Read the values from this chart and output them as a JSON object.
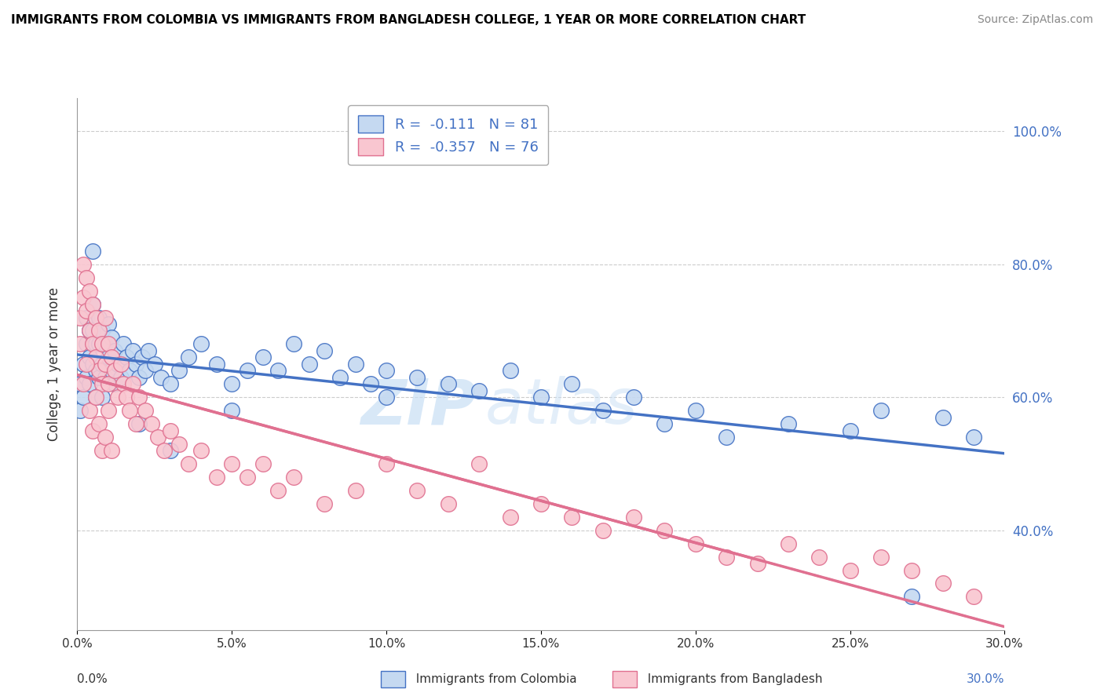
{
  "title": "IMMIGRANTS FROM COLOMBIA VS IMMIGRANTS FROM BANGLADESH COLLEGE, 1 YEAR OR MORE CORRELATION CHART",
  "source": "Source: ZipAtlas.com",
  "ylabel": "College, 1 year or more",
  "xlim": [
    0.0,
    0.3
  ],
  "ylim": [
    0.25,
    1.05
  ],
  "yticks": [
    0.4,
    0.6,
    0.8,
    1.0
  ],
  "ytick_labels": [
    "40.0%",
    "60.0%",
    "80.0%",
    "100.0%"
  ],
  "xticks": [
    0.0,
    0.05,
    0.1,
    0.15,
    0.2,
    0.25,
    0.3
  ],
  "xtick_labels": [
    "0.0%",
    "5.0%",
    "10.0%",
    "15.0%",
    "20.0%",
    "25.0%",
    "30.0%"
  ],
  "colombia_color": "#c5d9f1",
  "colombia_edge": "#4472c4",
  "bangladesh_color": "#f9c6d0",
  "bangladesh_edge": "#e07090",
  "trend_colombia_color": "#4472c4",
  "trend_bangladesh_color": "#e07090",
  "R_colombia": -0.111,
  "N_colombia": 81,
  "R_bangladesh": -0.357,
  "N_bangladesh": 76,
  "watermark_zip": "ZIP",
  "watermark_atlas": "atlas",
  "legend_label_colombia": "Immigrants from Colombia",
  "legend_label_bangladesh": "Immigrants from Bangladesh",
  "colombia_x": [
    0.001,
    0.001,
    0.002,
    0.002,
    0.003,
    0.003,
    0.003,
    0.004,
    0.004,
    0.004,
    0.005,
    0.005,
    0.005,
    0.006,
    0.006,
    0.006,
    0.007,
    0.007,
    0.007,
    0.008,
    0.008,
    0.008,
    0.009,
    0.009,
    0.01,
    0.01,
    0.011,
    0.011,
    0.012,
    0.012,
    0.013,
    0.014,
    0.015,
    0.016,
    0.017,
    0.018,
    0.019,
    0.02,
    0.021,
    0.022,
    0.023,
    0.025,
    0.027,
    0.03,
    0.033,
    0.036,
    0.04,
    0.045,
    0.05,
    0.055,
    0.06,
    0.065,
    0.07,
    0.075,
    0.08,
    0.085,
    0.09,
    0.095,
    0.1,
    0.11,
    0.12,
    0.13,
    0.14,
    0.15,
    0.16,
    0.17,
    0.18,
    0.19,
    0.2,
    0.21,
    0.23,
    0.25,
    0.26,
    0.27,
    0.28,
    0.29,
    0.1,
    0.05,
    0.03,
    0.02,
    0.005
  ],
  "colombia_y": [
    0.62,
    0.58,
    0.65,
    0.6,
    0.72,
    0.68,
    0.63,
    0.7,
    0.66,
    0.62,
    0.74,
    0.7,
    0.65,
    0.68,
    0.64,
    0.6,
    0.72,
    0.68,
    0.63,
    0.7,
    0.65,
    0.6,
    0.68,
    0.63,
    0.71,
    0.66,
    0.69,
    0.64,
    0.67,
    0.62,
    0.65,
    0.63,
    0.68,
    0.66,
    0.64,
    0.67,
    0.65,
    0.63,
    0.66,
    0.64,
    0.67,
    0.65,
    0.63,
    0.62,
    0.64,
    0.66,
    0.68,
    0.65,
    0.62,
    0.64,
    0.66,
    0.64,
    0.68,
    0.65,
    0.67,
    0.63,
    0.65,
    0.62,
    0.64,
    0.63,
    0.62,
    0.61,
    0.64,
    0.6,
    0.62,
    0.58,
    0.6,
    0.56,
    0.58,
    0.54,
    0.56,
    0.55,
    0.58,
    0.3,
    0.57,
    0.54,
    0.6,
    0.58,
    0.52,
    0.56,
    0.82
  ],
  "bangladesh_x": [
    0.001,
    0.001,
    0.002,
    0.002,
    0.003,
    0.003,
    0.004,
    0.004,
    0.005,
    0.005,
    0.006,
    0.006,
    0.007,
    0.007,
    0.008,
    0.008,
    0.009,
    0.009,
    0.01,
    0.01,
    0.011,
    0.012,
    0.013,
    0.014,
    0.015,
    0.016,
    0.017,
    0.018,
    0.019,
    0.02,
    0.022,
    0.024,
    0.026,
    0.028,
    0.03,
    0.033,
    0.036,
    0.04,
    0.045,
    0.05,
    0.055,
    0.06,
    0.065,
    0.07,
    0.08,
    0.09,
    0.1,
    0.11,
    0.12,
    0.13,
    0.14,
    0.15,
    0.16,
    0.17,
    0.18,
    0.19,
    0.2,
    0.21,
    0.22,
    0.23,
    0.24,
    0.25,
    0.26,
    0.27,
    0.28,
    0.29,
    0.002,
    0.003,
    0.004,
    0.005,
    0.006,
    0.007,
    0.008,
    0.009,
    0.01,
    0.011
  ],
  "bangladesh_y": [
    0.72,
    0.68,
    0.8,
    0.75,
    0.78,
    0.73,
    0.76,
    0.7,
    0.74,
    0.68,
    0.72,
    0.66,
    0.7,
    0.64,
    0.68,
    0.62,
    0.72,
    0.65,
    0.68,
    0.62,
    0.66,
    0.64,
    0.6,
    0.65,
    0.62,
    0.6,
    0.58,
    0.62,
    0.56,
    0.6,
    0.58,
    0.56,
    0.54,
    0.52,
    0.55,
    0.53,
    0.5,
    0.52,
    0.48,
    0.5,
    0.48,
    0.5,
    0.46,
    0.48,
    0.44,
    0.46,
    0.5,
    0.46,
    0.44,
    0.5,
    0.42,
    0.44,
    0.42,
    0.4,
    0.42,
    0.4,
    0.38,
    0.36,
    0.35,
    0.38,
    0.36,
    0.34,
    0.36,
    0.34,
    0.32,
    0.3,
    0.62,
    0.65,
    0.58,
    0.55,
    0.6,
    0.56,
    0.52,
    0.54,
    0.58,
    0.52
  ]
}
